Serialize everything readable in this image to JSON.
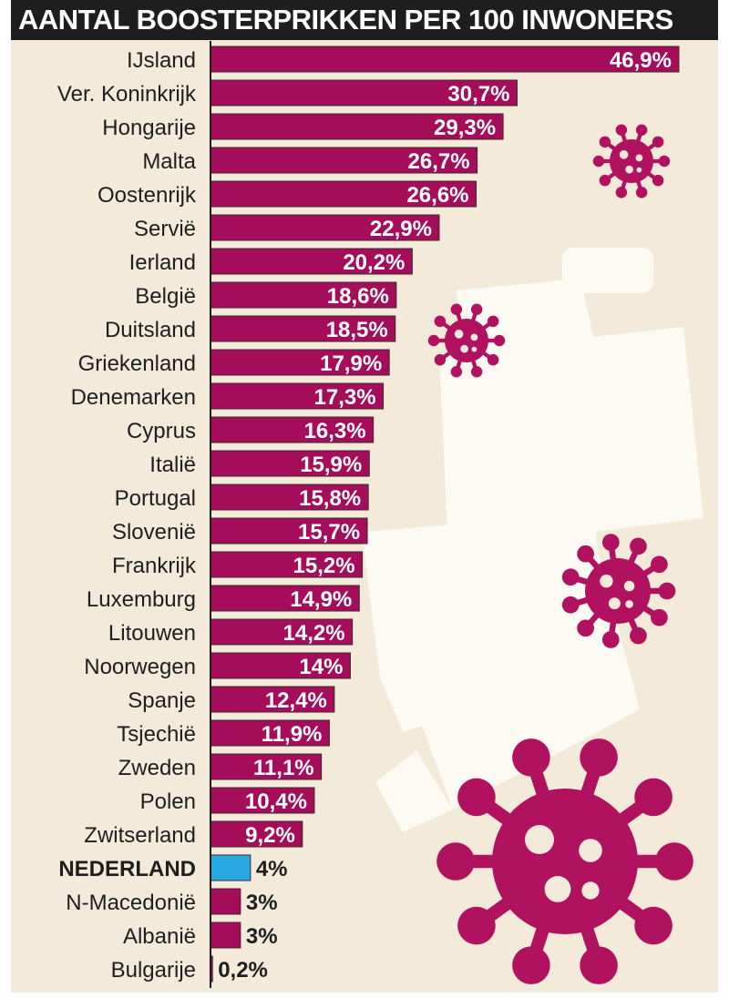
{
  "header": {
    "title": "AANTAL BOOSTERPRIKKEN PER 100 INWONERS"
  },
  "colors": {
    "bar": "#a50d5b",
    "highlight": "#2aaae2",
    "background": "#f3ead9",
    "header_bg": "#1e1e1e",
    "virus": "#b1125f",
    "syringe": "#fdfaf3"
  },
  "decor_icons": [
    "virus-icon",
    "syringe-icon"
  ],
  "chart_data": {
    "type": "bar",
    "orientation": "horizontal",
    "title": "AANTAL BOOSTERPRIKKEN PER 100 INWONERS",
    "categories": [
      "IJsland",
      "Ver. Koninkrijk",
      "Hongarije",
      "Malta",
      "Oostenrijk",
      "Servië",
      "Ierland",
      "België",
      "Duitsland",
      "Griekenland",
      "Denemarken",
      "Cyprus",
      "Italië",
      "Portugal",
      "Slovenië",
      "Frankrijk",
      "Luxemburg",
      "Litouwen",
      "Noorwegen",
      "Spanje",
      "Tsjechië",
      "Zweden",
      "Polen",
      "Zwitserland",
      "NEDERLAND",
      "N-Macedonië",
      "Albanië",
      "Bulgarije"
    ],
    "values": [
      46.9,
      30.7,
      29.3,
      26.7,
      26.6,
      22.9,
      20.2,
      18.6,
      18.5,
      17.9,
      17.3,
      16.3,
      15.9,
      15.8,
      15.7,
      15.2,
      14.9,
      14.2,
      14,
      12.4,
      11.9,
      11.1,
      10.4,
      9.2,
      4,
      3,
      3,
      0.2
    ],
    "value_labels": [
      "46,9%",
      "30,7%",
      "29,3%",
      "26,7%",
      "26,6%",
      "22,9%",
      "20,2%",
      "18,6%",
      "18,5%",
      "17,9%",
      "17,3%",
      "16,3%",
      "15,9%",
      "15,8%",
      "15,7%",
      "15,2%",
      "14,9%",
      "14,2%",
      "14%",
      "12,4%",
      "11,9%",
      "11,1%",
      "10,4%",
      "9,2%",
      "4%",
      "3%",
      "3%",
      "0,2%"
    ],
    "highlight_category": "NEDERLAND",
    "xlim": [
      0,
      46.9
    ],
    "xlabel": "",
    "ylabel": "",
    "grid": false
  }
}
